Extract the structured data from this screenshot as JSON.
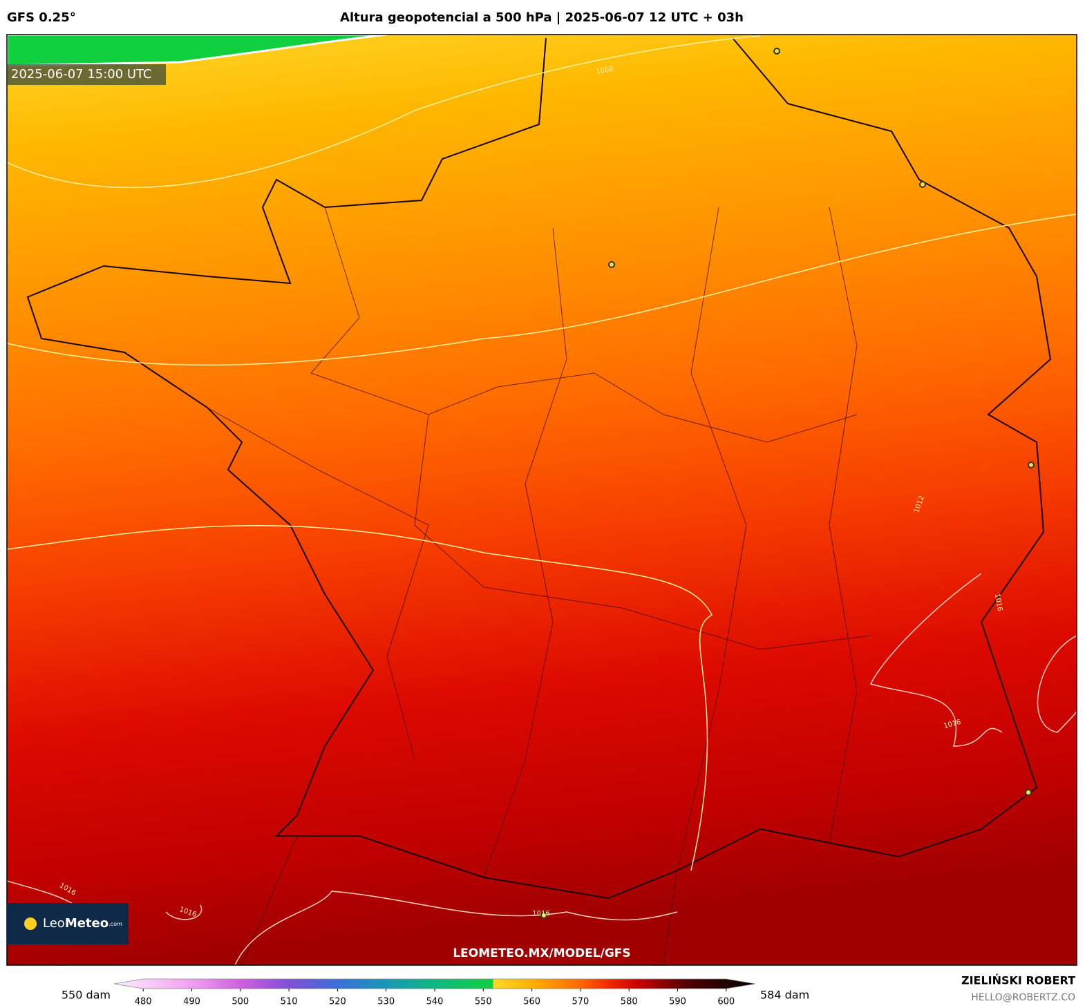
{
  "header": {
    "model": "GFS 0.25°",
    "title": "Altura geopotencial a 500 hPa | 2025-06-07 12 UTC + 03h"
  },
  "map": {
    "valid_time": "2025-06-07 15:00 UTC",
    "watermark": "LEOMETEO.MX/MODEL/GFS",
    "logo": {
      "part1": "Leo",
      "part2": "Meteo",
      "suffix": ".com"
    },
    "contour_labels": [
      "1008",
      "1012",
      "1016",
      "1016",
      "1016",
      "1016",
      "1016"
    ]
  },
  "colorbar": {
    "min_label": "550 dam",
    "max_label": "584 dam",
    "range": [
      474,
      606
    ],
    "ticks": [
      480,
      490,
      500,
      510,
      520,
      530,
      540,
      550,
      560,
      570,
      580,
      590,
      600
    ],
    "stops": [
      {
        "value": 474,
        "color": "#fff0ff"
      },
      {
        "value": 490,
        "color": "#f0a0f0"
      },
      {
        "value": 500,
        "color": "#d060e0"
      },
      {
        "value": 510,
        "color": "#8050d8"
      },
      {
        "value": 520,
        "color": "#3a70d8"
      },
      {
        "value": 530,
        "color": "#1898b8"
      },
      {
        "value": 540,
        "color": "#10b880"
      },
      {
        "value": 552,
        "color": "#10d040"
      },
      {
        "value": 552,
        "color": "#ffd828"
      },
      {
        "value": 560,
        "color": "#ffb000"
      },
      {
        "value": 570,
        "color": "#ff6800"
      },
      {
        "value": 576,
        "color": "#f02800"
      },
      {
        "value": 582,
        "color": "#c80000"
      },
      {
        "value": 592,
        "color": "#500000"
      },
      {
        "value": 606,
        "color": "#000000"
      }
    ]
  },
  "footer": {
    "author": "ZIELIŃSKI ROBERT",
    "email": "HELLO@ROBERTZ.CO"
  }
}
